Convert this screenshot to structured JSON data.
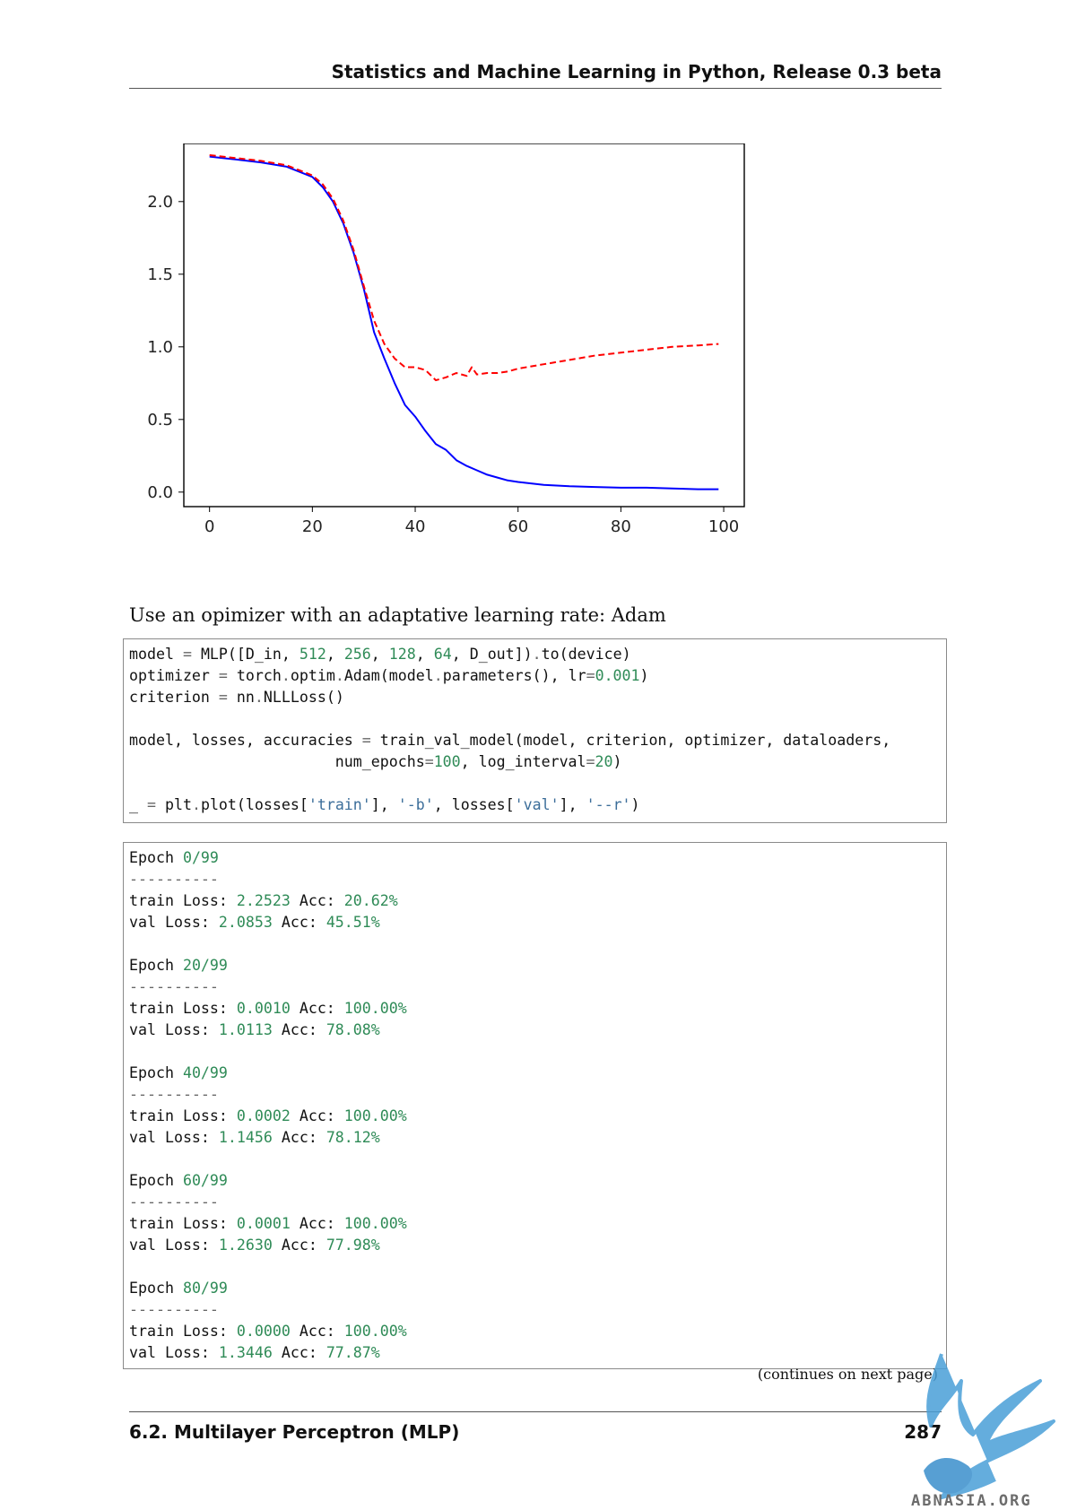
{
  "header": {
    "title": "Statistics and Machine Learning in Python, Release 0.3 beta"
  },
  "chart_data": {
    "type": "line",
    "title": "",
    "xlabel": "",
    "ylabel": "",
    "xlim": [
      -5,
      104
    ],
    "ylim": [
      -0.1,
      2.4
    ],
    "xticks": [
      0,
      20,
      40,
      60,
      80,
      100
    ],
    "xtick_labels": [
      "0",
      "20",
      "40",
      "60",
      "80",
      "100"
    ],
    "yticks": [
      0.0,
      0.5,
      1.0,
      1.5,
      2.0
    ],
    "ytick_labels": [
      "0.0",
      "0.5",
      "1.0",
      "1.5",
      "2.0"
    ],
    "grid": false,
    "series": [
      {
        "style": "solid",
        "color": "#0000ff",
        "x": [
          0,
          5,
          10,
          15,
          20,
          22,
          24,
          26,
          28,
          30,
          32,
          34,
          36,
          38,
          40,
          42,
          44,
          46,
          48,
          50,
          52,
          54,
          56,
          58,
          60,
          65,
          70,
          75,
          80,
          85,
          90,
          95,
          99
        ],
        "y": [
          2.31,
          2.29,
          2.27,
          2.24,
          2.17,
          2.1,
          2.0,
          1.85,
          1.65,
          1.4,
          1.1,
          0.92,
          0.75,
          0.6,
          0.52,
          0.42,
          0.33,
          0.29,
          0.22,
          0.18,
          0.15,
          0.12,
          0.1,
          0.08,
          0.07,
          0.05,
          0.04,
          0.035,
          0.03,
          0.03,
          0.025,
          0.02,
          0.02
        ]
      },
      {
        "style": "dashed",
        "color": "#ff0000",
        "x": [
          0,
          5,
          10,
          15,
          20,
          22,
          24,
          26,
          28,
          30,
          32,
          34,
          36,
          38,
          40,
          42,
          44,
          46,
          48,
          50,
          51,
          52,
          54,
          56,
          58,
          60,
          65,
          70,
          75,
          80,
          85,
          90,
          95,
          99
        ],
        "y": [
          2.32,
          2.3,
          2.28,
          2.25,
          2.18,
          2.12,
          2.02,
          1.87,
          1.67,
          1.42,
          1.18,
          1.02,
          0.92,
          0.86,
          0.86,
          0.84,
          0.77,
          0.79,
          0.82,
          0.8,
          0.86,
          0.81,
          0.82,
          0.82,
          0.83,
          0.85,
          0.88,
          0.91,
          0.94,
          0.96,
          0.98,
          1.0,
          1.01,
          1.02
        ]
      }
    ]
  },
  "prose": "Use an opimizer with an adaptative learning rate: Adam",
  "code_input": {
    "lines": [
      [
        [
          "model ",
          ""
        ],
        [
          "=",
          "o"
        ],
        [
          " MLP([D_in, ",
          ""
        ],
        [
          "512",
          "n"
        ],
        [
          ", ",
          ""
        ],
        [
          "256",
          "n"
        ],
        [
          ", ",
          ""
        ],
        [
          "128",
          "n"
        ],
        [
          ", ",
          ""
        ],
        [
          "64",
          "n"
        ],
        [
          ", D_out])",
          ""
        ],
        [
          ".",
          "o"
        ],
        [
          "to(device)",
          ""
        ]
      ],
      [
        [
          "optimizer ",
          ""
        ],
        [
          "=",
          "o"
        ],
        [
          " torch",
          ""
        ],
        [
          ".",
          "o"
        ],
        [
          "optim",
          ""
        ],
        [
          ".",
          "o"
        ],
        [
          "Adam(model",
          ""
        ],
        [
          ".",
          "o"
        ],
        [
          "parameters(), lr",
          ""
        ],
        [
          "=",
          "o"
        ],
        [
          "0.001",
          "n"
        ],
        [
          ")",
          ""
        ]
      ],
      [
        [
          "criterion ",
          ""
        ],
        [
          "=",
          "o"
        ],
        [
          " nn",
          ""
        ],
        [
          ".",
          "o"
        ],
        [
          "NLLLoss()",
          ""
        ]
      ],
      [],
      [
        [
          "model, losses, accuracies ",
          ""
        ],
        [
          "=",
          "o"
        ],
        [
          " train_val_model(model, criterion, optimizer, dataloaders,",
          ""
        ]
      ],
      [
        [
          "                       num_epochs",
          ""
        ],
        [
          "=",
          "o"
        ],
        [
          "100",
          "n"
        ],
        [
          ", log_interval",
          ""
        ],
        [
          "=",
          "o"
        ],
        [
          "20",
          "n"
        ],
        [
          ")",
          ""
        ]
      ],
      [],
      [
        [
          "_ ",
          ""
        ],
        [
          "=",
          "o"
        ],
        [
          " plt",
          ""
        ],
        [
          ".",
          "o"
        ],
        [
          "plot(losses[",
          ""
        ],
        [
          "'train'",
          "s"
        ],
        [
          "], ",
          ""
        ],
        [
          "'-b'",
          "s"
        ],
        [
          ", losses[",
          ""
        ],
        [
          "'val'",
          "s"
        ],
        [
          "], ",
          ""
        ],
        [
          "'--r'",
          "s"
        ],
        [
          ")",
          ""
        ]
      ]
    ]
  },
  "code_output": {
    "lines": [
      [
        [
          "Epoch ",
          ""
        ],
        [
          "0/99",
          "n"
        ]
      ],
      [
        [
          "----------",
          "o"
        ]
      ],
      [
        [
          "train Loss: ",
          ""
        ],
        [
          "2.2523",
          "n"
        ],
        [
          " Acc: ",
          ""
        ],
        [
          "20.62%",
          "n"
        ]
      ],
      [
        [
          "val Loss: ",
          ""
        ],
        [
          "2.0853",
          "n"
        ],
        [
          " Acc: ",
          ""
        ],
        [
          "45.51%",
          "n"
        ]
      ],
      [],
      [
        [
          "Epoch ",
          ""
        ],
        [
          "20/99",
          "n"
        ]
      ],
      [
        [
          "----------",
          "o"
        ]
      ],
      [
        [
          "train Loss: ",
          ""
        ],
        [
          "0.0010",
          "n"
        ],
        [
          " Acc: ",
          ""
        ],
        [
          "100.00%",
          "n"
        ]
      ],
      [
        [
          "val Loss: ",
          ""
        ],
        [
          "1.0113",
          "n"
        ],
        [
          " Acc: ",
          ""
        ],
        [
          "78.08%",
          "n"
        ]
      ],
      [],
      [
        [
          "Epoch ",
          ""
        ],
        [
          "40/99",
          "n"
        ]
      ],
      [
        [
          "----------",
          "o"
        ]
      ],
      [
        [
          "train Loss: ",
          ""
        ],
        [
          "0.0002",
          "n"
        ],
        [
          " Acc: ",
          ""
        ],
        [
          "100.00%",
          "n"
        ]
      ],
      [
        [
          "val Loss: ",
          ""
        ],
        [
          "1.1456",
          "n"
        ],
        [
          " Acc: ",
          ""
        ],
        [
          "78.12%",
          "n"
        ]
      ],
      [],
      [
        [
          "Epoch ",
          ""
        ],
        [
          "60/99",
          "n"
        ]
      ],
      [
        [
          "----------",
          "o"
        ]
      ],
      [
        [
          "train Loss: ",
          ""
        ],
        [
          "0.0001",
          "n"
        ],
        [
          " Acc: ",
          ""
        ],
        [
          "100.00%",
          "n"
        ]
      ],
      [
        [
          "val Loss: ",
          ""
        ],
        [
          "1.2630",
          "n"
        ],
        [
          " Acc: ",
          ""
        ],
        [
          "77.98%",
          "n"
        ]
      ],
      [],
      [
        [
          "Epoch ",
          ""
        ],
        [
          "80/99",
          "n"
        ]
      ],
      [
        [
          "----------",
          "o"
        ]
      ],
      [
        [
          "train Loss: ",
          ""
        ],
        [
          "0.0000",
          "n"
        ],
        [
          " Acc: ",
          ""
        ],
        [
          "100.00%",
          "n"
        ]
      ],
      [
        [
          "val Loss: ",
          ""
        ],
        [
          "1.3446",
          "n"
        ],
        [
          " Acc: ",
          ""
        ],
        [
          "77.87%",
          "n"
        ]
      ]
    ]
  },
  "continues": "(continues on next page)",
  "footer": {
    "section": "6.2. Multilayer Perceptron (MLP)",
    "page": "287"
  },
  "watermark": {
    "text": "ABNASIA.ORG",
    "color": "#4a9fd8"
  }
}
